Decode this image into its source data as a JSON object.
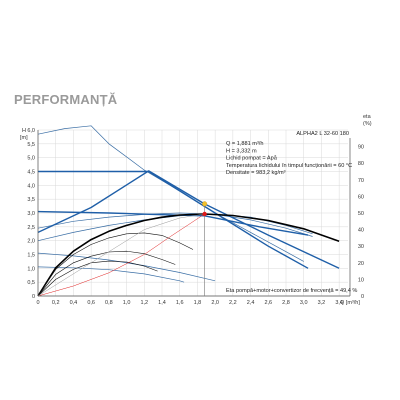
{
  "page": {
    "title": "PERFORMANȚĂ"
  },
  "chart_data": {
    "type": "line",
    "model_label": "ALPHA2 L 32-60 180",
    "y_left_label": "H\n[m]",
    "y_left_label_lines": [
      "H",
      "[m]"
    ],
    "y_right_label_lines": [
      "eta",
      "(%)"
    ],
    "x_label_tail": "Q [m³/h]",
    "x_ticks": [
      "0",
      "0,2",
      "0,4",
      "0,6",
      "0,8",
      "1,0",
      "1,2",
      "1,4",
      "1,6",
      "1,8",
      "2,0",
      "2,2",
      "2,4",
      "2,6",
      "2,8",
      "3,0",
      "3,2",
      "3,4"
    ],
    "y_left_ticks": [
      "0",
      "0,5",
      "1,0",
      "1,5",
      "2,0",
      "2,5",
      "3,0",
      "3,5",
      "4,0",
      "4,5",
      "5,0",
      "5,5",
      "6,0"
    ],
    "y_right_ticks": [
      "0",
      "10",
      "20",
      "30",
      "40",
      "50",
      "60",
      "70",
      "80",
      "90"
    ],
    "xlim": [
      0,
      3.5
    ],
    "ylim": [
      0,
      6
    ],
    "eta_lim": [
      0,
      100
    ],
    "info_lines": [
      "Q = 1,881  m³/h",
      "H = 3,332  m",
      "Lichid pompat = Apă",
      "Temperatura lichidului în timpul funcționării = 60  °C",
      "Densitate = 983,2  kg/m³"
    ],
    "footer_note": "Eta pompă+motor+convertizor de frecvență = 49,4 %",
    "duty_point": {
      "q": 1.881,
      "h": 3.332
    },
    "eta_point": {
      "q": 1.881,
      "eta": 49.4
    },
    "series": [
      {
        "kind": "head-thin",
        "points": [
          [
            0,
            5.85
          ],
          [
            0.3,
            6.05
          ],
          [
            0.6,
            6.15
          ],
          [
            0.8,
            5.5
          ],
          [
            1.2,
            4.55
          ],
          [
            1.6,
            3.8
          ],
          [
            2.0,
            3.0
          ],
          [
            2.4,
            2.3
          ],
          [
            2.8,
            1.6
          ],
          [
            3.0,
            1.25
          ]
        ]
      },
      {
        "kind": "head-thin",
        "points": [
          [
            0,
            1.05
          ],
          [
            0.4,
            1.02
          ],
          [
            0.8,
            0.95
          ],
          [
            1.2,
            0.8
          ],
          [
            1.6,
            0.55
          ],
          [
            1.65,
            0.5
          ]
        ]
      },
      {
        "kind": "head-thin",
        "points": [
          [
            0,
            1.55
          ],
          [
            0.4,
            1.45
          ],
          [
            0.8,
            1.3
          ],
          [
            1.2,
            1.1
          ],
          [
            1.6,
            0.85
          ],
          [
            2.0,
            0.55
          ]
        ]
      },
      {
        "kind": "head-thin",
        "points": [
          [
            0,
            2.45
          ],
          [
            0.4,
            2.7
          ],
          [
            0.8,
            2.85
          ],
          [
            1.2,
            2.95
          ],
          [
            1.6,
            3.0
          ],
          [
            2.0,
            2.95
          ],
          [
            2.4,
            2.75
          ],
          [
            2.8,
            2.45
          ],
          [
            3.1,
            2.15
          ]
        ]
      },
      {
        "kind": "head-thin",
        "points": [
          [
            0,
            2.0
          ],
          [
            0.4,
            2.3
          ],
          [
            0.8,
            2.55
          ],
          [
            1.2,
            2.75
          ],
          [
            1.6,
            2.9
          ],
          [
            2.0,
            2.95
          ],
          [
            2.4,
            2.85
          ],
          [
            2.8,
            2.55
          ],
          [
            3.1,
            2.25
          ]
        ]
      },
      {
        "kind": "head-thick",
        "points": [
          [
            0,
            4.5
          ],
          [
            1.25,
            4.5
          ],
          [
            2.0,
            3.0
          ],
          [
            2.6,
            1.8
          ],
          [
            3.05,
            1.0
          ]
        ]
      },
      {
        "kind": "head-thick",
        "points": [
          [
            0,
            2.3
          ],
          [
            0.6,
            3.2
          ],
          [
            1.25,
            4.52
          ],
          [
            1.88,
            3.33
          ],
          [
            2.6,
            2.2
          ],
          [
            3.4,
            1.0
          ]
        ]
      },
      {
        "kind": "head-thick",
        "points": [
          [
            0,
            3.05
          ],
          [
            0.8,
            3.0
          ],
          [
            1.3,
            2.95
          ],
          [
            1.88,
            2.9
          ],
          [
            2.5,
            2.5
          ],
          [
            3.05,
            2.2
          ]
        ]
      },
      {
        "kind": "eta-thick",
        "points": [
          [
            0,
            0
          ],
          [
            0.2,
            17
          ],
          [
            0.4,
            27
          ],
          [
            0.6,
            34
          ],
          [
            0.8,
            39
          ],
          [
            1.0,
            42.5
          ],
          [
            1.2,
            45.5
          ],
          [
            1.4,
            47.5
          ],
          [
            1.6,
            48.8
          ],
          [
            1.88,
            49.4
          ],
          [
            2.2,
            48.5
          ],
          [
            2.6,
            45.5
          ],
          [
            3.0,
            40.5
          ],
          [
            3.4,
            33
          ]
        ]
      },
      {
        "kind": "eta-thin",
        "points": [
          [
            0,
            0
          ],
          [
            0.2,
            16
          ],
          [
            0.4,
            25
          ],
          [
            0.6,
            31
          ],
          [
            0.8,
            35
          ],
          [
            1.0,
            37.5
          ],
          [
            1.2,
            38
          ],
          [
            1.4,
            36.5
          ],
          [
            1.6,
            32
          ],
          [
            1.75,
            28
          ]
        ]
      },
      {
        "kind": "eta-thin",
        "points": [
          [
            0,
            0
          ],
          [
            0.2,
            13
          ],
          [
            0.4,
            20
          ],
          [
            0.6,
            24
          ],
          [
            0.8,
            26.5
          ],
          [
            1.0,
            27
          ],
          [
            1.2,
            25.5
          ],
          [
            1.4,
            22
          ],
          [
            1.55,
            19
          ]
        ]
      },
      {
        "kind": "eta-thin",
        "points": [
          [
            0,
            0
          ],
          [
            0.2,
            10
          ],
          [
            0.4,
            16
          ],
          [
            0.6,
            20
          ],
          [
            0.8,
            21
          ],
          [
            1.0,
            20.5
          ],
          [
            1.2,
            18
          ],
          [
            1.35,
            15
          ]
        ]
      },
      {
        "kind": "eta-red",
        "points": [
          [
            0,
            0
          ],
          [
            0.4,
            6
          ],
          [
            0.8,
            14
          ],
          [
            1.2,
            25
          ],
          [
            1.5,
            36
          ],
          [
            1.7,
            43
          ],
          [
            1.88,
            49.4
          ]
        ]
      },
      {
        "kind": "eta-gray",
        "points": [
          [
            0,
            0
          ],
          [
            0.6,
            20
          ],
          [
            1.2,
            40
          ],
          [
            1.6,
            47
          ],
          [
            1.88,
            49.4
          ]
        ]
      }
    ]
  }
}
